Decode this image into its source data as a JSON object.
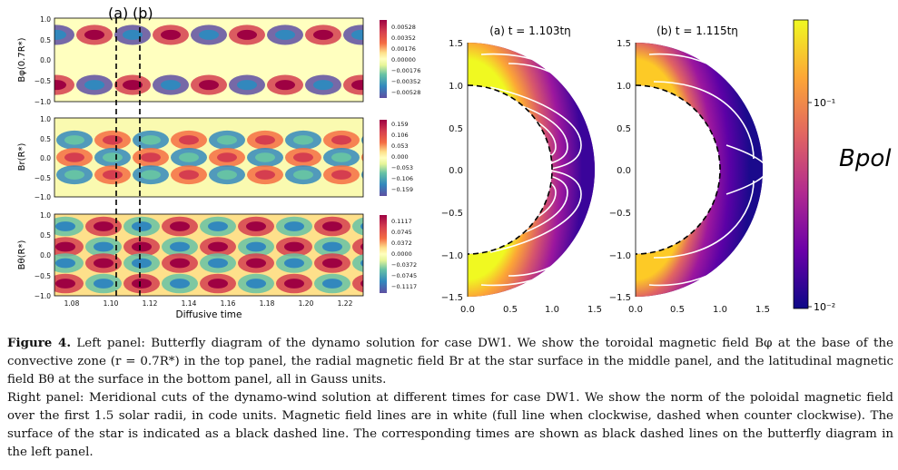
{
  "butterfly": {
    "markers": {
      "a": "(a)",
      "b": "(b)"
    },
    "xlabel": "Diffusive time",
    "xticks": [
      "1.08",
      "1.10",
      "1.12",
      "1.14",
      "1.16",
      "1.18",
      "1.20",
      "1.22"
    ],
    "yticks": [
      "1.0",
      "0.5",
      "0.0",
      "−0.5",
      "−1.0"
    ],
    "panels": [
      {
        "ylabel": "Bφ(0.7R*)",
        "cbar_ticks": [
          "0.00528",
          "0.00352",
          "0.00176",
          "0.00000",
          "−0.00176",
          "−0.00352",
          "−0.00528"
        ]
      },
      {
        "ylabel": "Br(R*)",
        "cbar_ticks": [
          "0.159",
          "0.106",
          "0.053",
          "0.000",
          "−0.053",
          "−0.106",
          "−0.159"
        ]
      },
      {
        "ylabel": "Bθ(R*)",
        "cbar_ticks": [
          "0.1117",
          "0.0745",
          "0.0372",
          "0.0000",
          "−0.0372",
          "−0.0745",
          "−0.1117"
        ]
      }
    ]
  },
  "meridional": {
    "titles": [
      "(a) t = 1.103tη",
      "(b) t = 1.115tη"
    ],
    "xticks": [
      "0.0",
      "0.5",
      "1.0",
      "1.5"
    ],
    "yticks": [
      "1.5",
      "1.0",
      "0.5",
      "0.0",
      "−0.5",
      "−1.0",
      "−1.5"
    ],
    "cbar_ticks": [
      "10⁻¹",
      "10⁻²"
    ],
    "cbar_label": "Bpol"
  },
  "caption": {
    "label": "Figure 4.",
    "left": " Left panel: Butterfly diagram of the dynamo solution for case DW1. We show the toroidal magnetic field Bφ at the base of the convective zone (r = 0.7R*) in the top panel, the radial magnetic field Br at the star surface in the middle panel, and the latitudinal magnetic field Bθ at the surface in the bottom panel, all in Gauss units.",
    "right": "Right panel: Meridional cuts of the dynamo-wind solution at different times for case DW1. We show the norm of the poloidal magnetic field over the first 1.5 solar radii, in code units. Magnetic field lines are in white (full line when clockwise, dashed when counter clockwise). The surface of the star is indicated as a black dashed line. The corresponding times are shown as black dashed lines on the butterfly diagram in the left panel."
  }
}
